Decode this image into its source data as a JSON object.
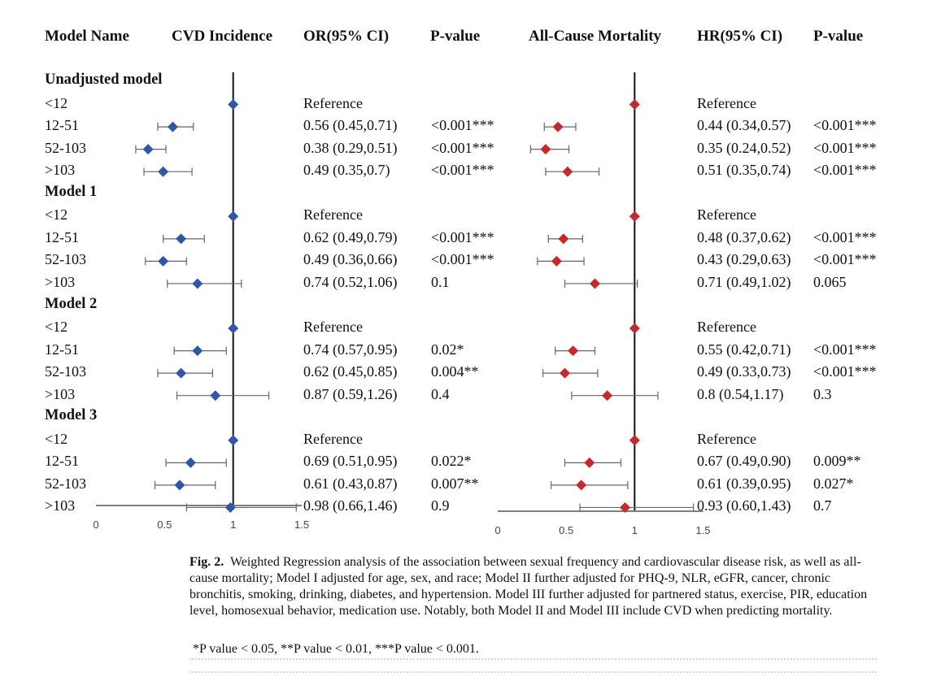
{
  "chart_data": {
    "type": "forest",
    "headers": {
      "model_name": "Model Name",
      "cvd_incidence": "CVD Incidence",
      "or_ci": "OR(95% CI)",
      "p_value_cvd": "P-value",
      "mortality": "All-Cause Mortality",
      "hr_ci": "HR(95% CI)",
      "p_value_mort": "P-value"
    },
    "reference_line": 1,
    "axis_ticks": [
      "0",
      "0.5",
      "1",
      "1.5"
    ],
    "cvd_xlim": [
      0,
      1.5
    ],
    "mortality_xlim": [
      0,
      1.5
    ],
    "cvd_color": "#2e57a6",
    "mortality_color": "#c8282c",
    "groups": [
      {
        "name": "Unadjusted model",
        "rows": [
          {
            "label": "<12",
            "cvd": {
              "text": "Reference",
              "p": "",
              "est": 1,
              "lo": 1,
              "hi": 1
            },
            "mort": {
              "text": "Reference",
              "p": "",
              "est": 1,
              "lo": 1,
              "hi": 1
            }
          },
          {
            "label": "12-51",
            "cvd": {
              "text": "0.56 (0.45,0.71)",
              "p": "<0.001***",
              "est": 0.56,
              "lo": 0.45,
              "hi": 0.71
            },
            "mort": {
              "text": "0.44 (0.34,0.57)",
              "p": "<0.001***",
              "est": 0.44,
              "lo": 0.34,
              "hi": 0.57
            }
          },
          {
            "label": "52-103",
            "cvd": {
              "text": "0.38 (0.29,0.51)",
              "p": "<0.001***",
              "est": 0.38,
              "lo": 0.29,
              "hi": 0.51
            },
            "mort": {
              "text": "0.35 (0.24,0.52)",
              "p": "<0.001***",
              "est": 0.35,
              "lo": 0.24,
              "hi": 0.52
            }
          },
          {
            "label": ">103",
            "cvd": {
              "text": "0.49 (0.35,0.7)",
              "p": "<0.001***",
              "est": 0.49,
              "lo": 0.35,
              "hi": 0.7
            },
            "mort": {
              "text": "0.51 (0.35,0.74)",
              "p": "<0.001***",
              "est": 0.51,
              "lo": 0.35,
              "hi": 0.74
            }
          }
        ]
      },
      {
        "name": "Model 1",
        "rows": [
          {
            "label": "<12",
            "cvd": {
              "text": "Reference",
              "p": "",
              "est": 1,
              "lo": 1,
              "hi": 1
            },
            "mort": {
              "text": "Reference",
              "p": "",
              "est": 1,
              "lo": 1,
              "hi": 1
            }
          },
          {
            "label": "12-51",
            "cvd": {
              "text": "0.62 (0.49,0.79)",
              "p": "<0.001***",
              "est": 0.62,
              "lo": 0.49,
              "hi": 0.79
            },
            "mort": {
              "text": "0.48 (0.37,0.62)",
              "p": "<0.001***",
              "est": 0.48,
              "lo": 0.37,
              "hi": 0.62
            }
          },
          {
            "label": "52-103",
            "cvd": {
              "text": "0.49 (0.36,0.66)",
              "p": "<0.001***",
              "est": 0.49,
              "lo": 0.36,
              "hi": 0.66
            },
            "mort": {
              "text": "0.43 (0.29,0.63)",
              "p": "<0.001***",
              "est": 0.43,
              "lo": 0.29,
              "hi": 0.63
            }
          },
          {
            "label": ">103",
            "cvd": {
              "text": "0.74 (0.52,1.06)",
              "p": "0.1",
              "est": 0.74,
              "lo": 0.52,
              "hi": 1.06
            },
            "mort": {
              "text": "0.71 (0.49,1.02)",
              "p": "0.065",
              "est": 0.71,
              "lo": 0.49,
              "hi": 1.02
            }
          }
        ]
      },
      {
        "name": "Model 2",
        "rows": [
          {
            "label": "<12",
            "cvd": {
              "text": "Reference",
              "p": "",
              "est": 1,
              "lo": 1,
              "hi": 1
            },
            "mort": {
              "text": "Reference",
              "p": "",
              "est": 1,
              "lo": 1,
              "hi": 1
            }
          },
          {
            "label": "12-51",
            "cvd": {
              "text": "0.74 (0.57,0.95)",
              "p": "0.02*",
              "est": 0.74,
              "lo": 0.57,
              "hi": 0.95
            },
            "mort": {
              "text": "0.55 (0.42,0.71)",
              "p": "<0.001***",
              "est": 0.55,
              "lo": 0.42,
              "hi": 0.71
            }
          },
          {
            "label": "52-103",
            "cvd": {
              "text": "0.62 (0.45,0.85)",
              "p": "0.004**",
              "est": 0.62,
              "lo": 0.45,
              "hi": 0.85
            },
            "mort": {
              "text": "0.49 (0.33,0.73)",
              "p": "<0.001***",
              "est": 0.49,
              "lo": 0.33,
              "hi": 0.73
            }
          },
          {
            "label": ">103",
            "cvd": {
              "text": "0.87 (0.59,1.26)",
              "p": "0.4",
              "est": 0.87,
              "lo": 0.59,
              "hi": 1.26
            },
            "mort": {
              "text": "0.8 (0.54,1.17)",
              "p": "0.3",
              "est": 0.8,
              "lo": 0.54,
              "hi": 1.17
            }
          }
        ]
      },
      {
        "name": "Model 3",
        "rows": [
          {
            "label": "<12",
            "cvd": {
              "text": "Reference",
              "p": "",
              "est": 1,
              "lo": 1,
              "hi": 1
            },
            "mort": {
              "text": "",
              "p": "",
              "est": 1,
              "lo": 1,
              "hi": 1
            }
          },
          {
            "label": "12-51",
            "cvd": {
              "text": "0.69 (0.51,0.95)",
              "p": "0.022*",
              "est": 0.69,
              "lo": 0.51,
              "hi": 0.95
            },
            "mort": {
              "text": "0.67 (0.49,0.90)",
              "p": "0.009**",
              "est": 0.67,
              "lo": 0.49,
              "hi": 0.9
            }
          },
          {
            "label": "52-103",
            "cvd": {
              "text": "0.61 (0.43,0.87)",
              "p": "0.007**",
              "est": 0.61,
              "lo": 0.43,
              "hi": 0.87
            },
            "mort": {
              "text": "0.61 (0.39,0.95)",
              "p": "0.027*",
              "est": 0.61,
              "lo": 0.39,
              "hi": 0.95
            }
          },
          {
            "label": ">103",
            "cvd": {
              "text": "0.98 (0.66,1.46)",
              "p": "0.9",
              "est": 0.98,
              "lo": 0.66,
              "hi": 1.46
            },
            "mort": {
              "text": "0.93 (0.60,1.43)",
              "p": "0.7",
              "est": 0.93,
              "lo": 0.6,
              "hi": 1.43
            }
          }
        ]
      }
    ]
  },
  "mort_reference_row13": "Reference",
  "caption": {
    "label": "Fig. 2",
    "text": "Weighted Regression analysis of the association between sexual frequency and cardiovascular disease risk, as well as all-cause mortality; Model I adjusted for age, sex, and race; Model II further adjusted for PHQ-9, NLR, eGFR, cancer, chronic bronchitis, smoking, drinking, diabetes, and hypertension. Model III further adjusted for partnered status, exercise, PIR, education level, homosexual behavior, medication use. Notably, both Model II and Model III include CVD when predicting mortality.",
    "footnote": "*P value < 0.05, **P value < 0.01, ***P value < 0.001."
  }
}
